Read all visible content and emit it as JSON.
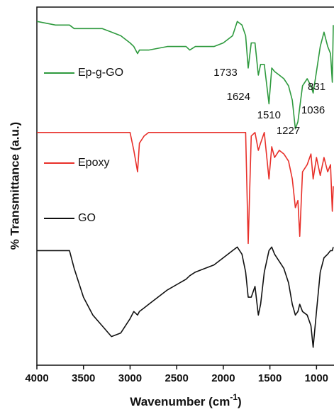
{
  "chart_data": {
    "type": "line",
    "x_label": {
      "text": "Wavenumber (cm",
      "superscript": "-1",
      "suffix": ")"
    },
    "y_label": "% Transmittance (a.u.)",
    "x": [
      4000,
      3800,
      3700,
      3650,
      3600,
      3500,
      3400,
      3300,
      3200,
      3100,
      3000,
      2960,
      2920,
      2900,
      2850,
      2800,
      2600,
      2400,
      2360,
      2300,
      2100,
      2000,
      1900,
      1850,
      1800,
      1760,
      1733,
      1700,
      1660,
      1624,
      1600,
      1560,
      1510,
      1480,
      1450,
      1400,
      1350,
      1300,
      1260,
      1227,
      1200,
      1180,
      1150,
      1100,
      1060,
      1036,
      1000,
      960,
      920,
      880,
      850,
      831,
      820
    ],
    "series": [
      {
        "name": "Ep-g-GO",
        "color": "#2e9a3e",
        "values": [
          96,
          95,
          95,
          95,
          94,
          94,
          94,
          94,
          93,
          92,
          90,
          89,
          87,
          88,
          88,
          88,
          89,
          89,
          88,
          89,
          89,
          90,
          92,
          96,
          95,
          92,
          83,
          90,
          90,
          81,
          84,
          84,
          73,
          83,
          82,
          81,
          80,
          78,
          74,
          66,
          68,
          72,
          78,
          80,
          78,
          76,
          82,
          89,
          93,
          89,
          87,
          79,
          95
        ]
      },
      {
        "name": "Epoxy",
        "color": "#e8302a",
        "values": [
          65,
          65,
          65,
          65,
          65,
          65,
          65,
          65,
          65,
          65,
          65,
          60,
          54,
          62,
          64,
          65,
          65,
          65,
          65,
          65,
          65,
          65,
          65,
          65,
          65,
          65,
          34,
          64,
          65,
          60,
          62,
          65,
          52,
          61,
          58,
          60,
          59,
          57,
          52,
          44,
          46,
          36,
          54,
          56,
          59,
          52,
          58,
          53,
          58,
          54,
          56,
          43,
          50
        ]
      },
      {
        "name": "GO",
        "color": "#111111",
        "values": [
          32,
          32,
          32,
          32,
          27,
          19,
          14,
          11,
          8,
          9,
          13,
          15,
          14,
          15,
          16,
          17,
          21,
          24,
          25,
          26,
          28,
          30,
          32,
          33,
          31,
          26,
          19,
          19,
          22,
          14,
          17,
          26,
          32,
          33,
          31,
          29,
          27,
          23,
          17,
          14,
          15,
          17,
          15,
          14,
          11,
          5,
          15,
          26,
          30,
          31,
          32,
          32,
          33
        ]
      }
    ],
    "annotations": [
      {
        "x": 1733,
        "label": "1733"
      },
      {
        "x": 1624,
        "label": "1624"
      },
      {
        "x": 1510,
        "label": "1510"
      },
      {
        "x": 1227,
        "label": "1227"
      },
      {
        "x": 1036,
        "label": "1036"
      },
      {
        "x": 831,
        "label": "831"
      }
    ],
    "xlim": [
      4000,
      820
    ],
    "ylim": [
      0,
      100
    ],
    "xticks": [
      4000,
      3500,
      3000,
      2500,
      2000,
      1500,
      1000
    ]
  }
}
